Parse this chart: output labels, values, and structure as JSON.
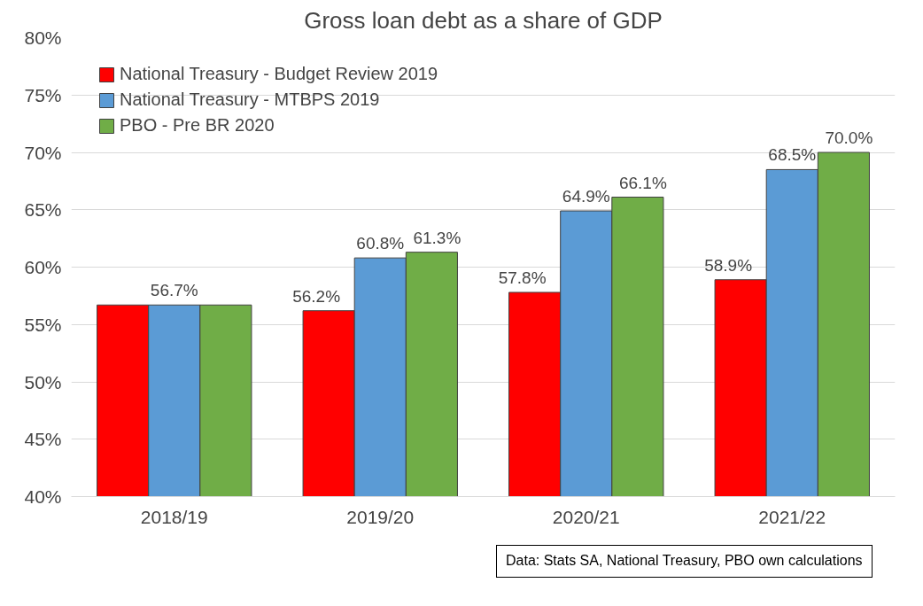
{
  "chart_data": {
    "type": "bar",
    "title": "Gross loan debt as a share of GDP",
    "categories": [
      "2018/19",
      "2019/20",
      "2020/21",
      "2021/22"
    ],
    "series": [
      {
        "name": "National Treasury - Budget Review 2019",
        "color": "#ff0000",
        "values": [
          56.7,
          56.2,
          57.8,
          58.9
        ],
        "value_labels": [
          null,
          "56.2%",
          "57.8%",
          "58.9%"
        ]
      },
      {
        "name": "National Treasury - MTBPS 2019",
        "color": "#5b9bd5",
        "values": [
          56.7,
          60.8,
          64.9,
          68.5
        ],
        "value_labels": [
          "56.7%",
          "60.8%",
          "64.9%",
          "68.5%"
        ]
      },
      {
        "name": "PBO - Pre BR 2020",
        "color": "#70ad47",
        "values": [
          56.7,
          61.3,
          66.1,
          70.0
        ],
        "value_labels": [
          null,
          "61.3%",
          "66.1%",
          "70.0%"
        ]
      }
    ],
    "ylim": [
      40,
      80
    ],
    "yticks": [
      {
        "value": 40,
        "label": "40%"
      },
      {
        "value": 45,
        "label": "45%"
      },
      {
        "value": 50,
        "label": "50%"
      },
      {
        "value": 55,
        "label": "55%"
      },
      {
        "value": 60,
        "label": "60%"
      },
      {
        "value": 65,
        "label": "65%"
      },
      {
        "value": 70,
        "label": "70%"
      },
      {
        "value": 75,
        "label": "75%"
      },
      {
        "value": 80,
        "label": "80%"
      }
    ],
    "grid": "y",
    "legend": "top left",
    "annotations": [
      "Data: Stats SA, National Treasury, PBO own calculations"
    ]
  }
}
